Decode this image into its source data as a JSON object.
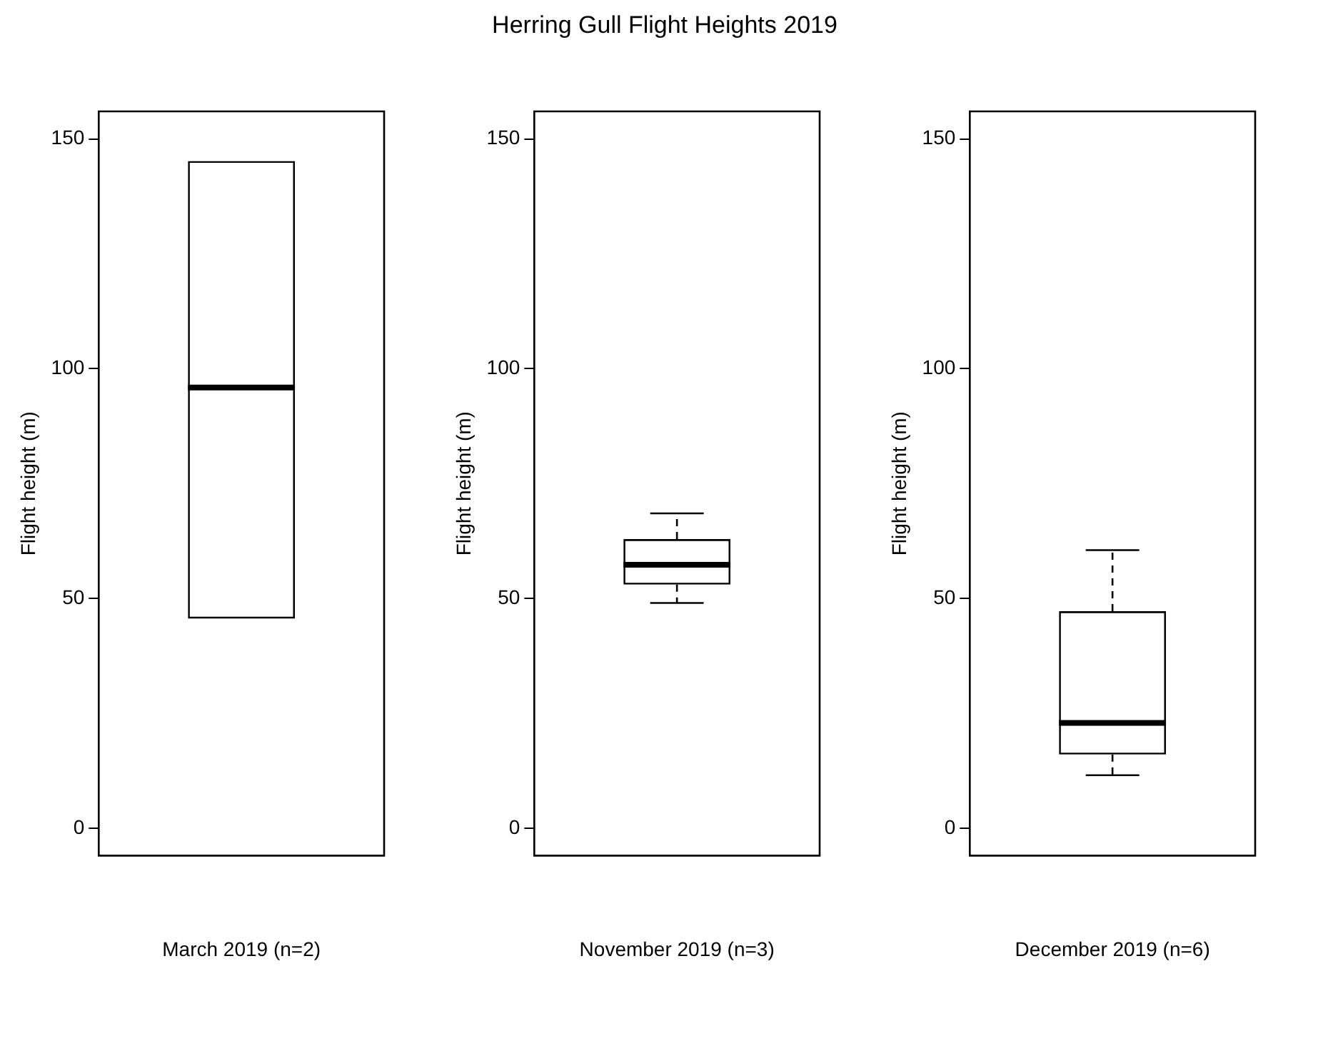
{
  "chart_data": [
    {
      "type": "box",
      "categories": [
        "March 2019 (n=2)"
      ],
      "ylabel": "Flight height (m)",
      "ylim": [
        -6,
        156
      ],
      "yticks": [
        0,
        50,
        100,
        150
      ],
      "grid": false,
      "legend": false,
      "boxes": [
        {
          "low": 45.6,
          "q1": 45.6,
          "median": 95.9,
          "q3": 145.2,
          "high": 145.2
        }
      ]
    },
    {
      "type": "box",
      "title": "Herring Gull Flight Heights 2019",
      "categories": [
        "November 2019 (n=3)"
      ],
      "ylabel": "Flight height (m)",
      "ylim": [
        -6,
        156
      ],
      "yticks": [
        0,
        50,
        100,
        150
      ],
      "grid": false,
      "legend": false,
      "boxes": [
        {
          "low": 49,
          "q1": 53,
          "median": 57.3,
          "q3": 62.9,
          "high": 68.5
        }
      ]
    },
    {
      "type": "box",
      "categories": [
        "December 2019 (n=6)"
      ],
      "ylabel": "Flight height (m)",
      "ylim": [
        -6,
        156
      ],
      "yticks": [
        0,
        50,
        100,
        150
      ],
      "grid": false,
      "legend": false,
      "boxes": [
        {
          "low": 11.5,
          "q1": 16,
          "median": 22.9,
          "q3": 47.2,
          "high": 60.5
        }
      ]
    }
  ]
}
